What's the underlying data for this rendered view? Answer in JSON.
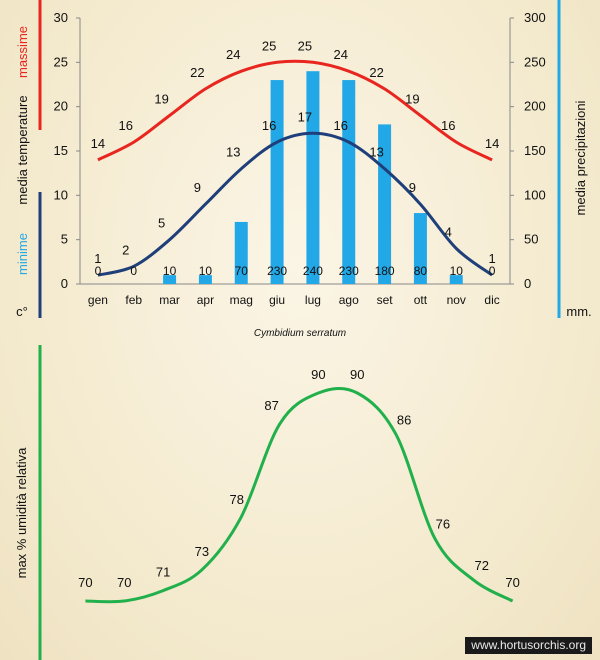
{
  "chart_data": [
    {
      "type": "bar+line",
      "title": "Cymbidium serratum",
      "categories": [
        "gen",
        "feb",
        "mar",
        "apr",
        "mag",
        "giu",
        "lug",
        "ago",
        "set",
        "ott",
        "nov",
        "dic"
      ],
      "y_left": {
        "label_parts": [
          "c°",
          "minime",
          "media  temperature",
          "massime"
        ],
        "ylim": [
          0,
          30
        ],
        "ticks": [
          0,
          5,
          10,
          15,
          20,
          25,
          30
        ]
      },
      "y_right": {
        "label": "media  precipitazioni",
        "unit": "mm.",
        "ylim": [
          0,
          300
        ],
        "ticks": [
          0,
          50,
          100,
          150,
          200,
          250,
          300
        ]
      },
      "series": [
        {
          "name": "massime",
          "kind": "line",
          "axis": "left",
          "color": "#e8251f",
          "values": [
            14,
            16,
            19,
            22,
            24,
            25,
            25,
            24,
            22,
            19,
            16,
            14
          ]
        },
        {
          "name": "minime",
          "kind": "line",
          "axis": "left",
          "color": "#1f3f7a",
          "values": [
            1,
            2,
            5,
            9,
            13,
            16,
            17,
            16,
            13,
            9,
            4,
            1
          ]
        },
        {
          "name": "media precipitazioni",
          "kind": "bar",
          "axis": "right",
          "color": "#22a8e6",
          "values": [
            0,
            0,
            10,
            10,
            70,
            230,
            240,
            230,
            180,
            80,
            10,
            0
          ]
        }
      ],
      "grid": false
    },
    {
      "type": "line",
      "ylabel": "max  %  umidità relativa",
      "categories": [
        "gen",
        "feb",
        "mar",
        "apr",
        "mag",
        "giu",
        "lug",
        "ago",
        "set",
        "ott",
        "nov",
        "dic"
      ],
      "series": [
        {
          "name": "max % umidità relativa",
          "color": "#21b04b",
          "values": [
            70,
            70,
            71,
            73,
            78,
            87,
            90,
            90,
            86,
            76,
            72,
            70
          ]
        }
      ]
    }
  ],
  "watermark": "www.hortusorchis.org",
  "colors": {
    "red_axis": "#e8251f",
    "blue_axis": "#1f3f7a",
    "cyan_axis": "#22a8e6",
    "green_axis": "#21b04b"
  }
}
